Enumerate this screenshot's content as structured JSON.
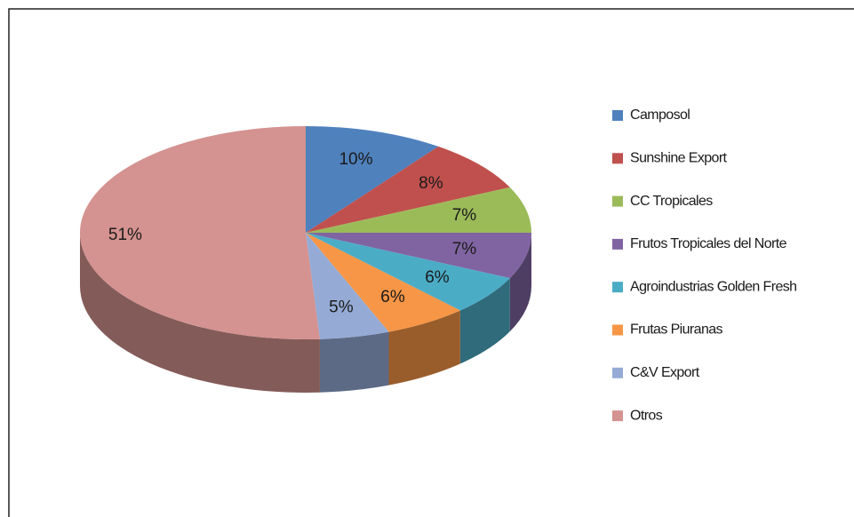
{
  "chart_data": {
    "type": "pie",
    "categories": [
      "Camposol",
      "Sunshine Export",
      "CC Tropicales",
      "Frutos Tropicales del Norte",
      "Agroindustrias Golden Fresh",
      "Frutas Piuranas",
      "C&V Export",
      "Otros"
    ],
    "values": [
      10,
      8,
      7,
      7,
      6,
      6,
      5,
      51
    ],
    "value_labels": [
      "10%",
      "8%",
      "7%",
      "7%",
      "6%",
      "6%",
      "5%",
      "51%"
    ],
    "colors": [
      "#4f81bd",
      "#c0504d",
      "#9bbb59",
      "#8064a2",
      "#4bacc6",
      "#f79646",
      "#95abd6",
      "#d49290"
    ],
    "legend": "right"
  }
}
